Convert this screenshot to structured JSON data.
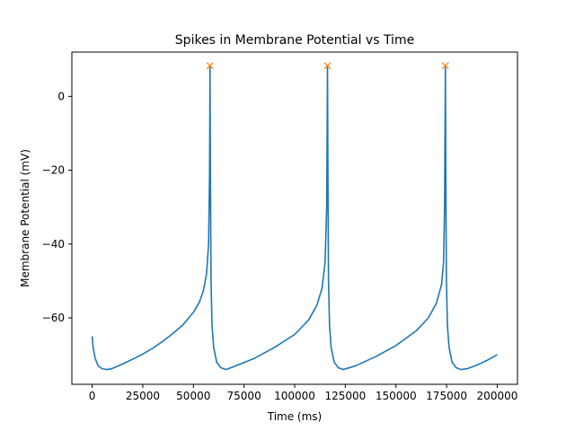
{
  "chart_data": {
    "type": "line",
    "title": "Spikes in Membrane Potential vs Time",
    "xlabel": "Time (ms)",
    "ylabel": "Membrane Potential (mV)",
    "xlim": [
      -10000,
      210000
    ],
    "ylim": [
      -78,
      12
    ],
    "xticks": [
      0,
      25000,
      50000,
      75000,
      100000,
      125000,
      150000,
      175000,
      200000
    ],
    "yticks": [
      0,
      -20,
      -40,
      -60
    ],
    "grid": false,
    "series": [
      {
        "type": "line",
        "color": "#1f77b4",
        "points": [
          [
            0,
            -65
          ],
          [
            500,
            -68
          ],
          [
            1500,
            -71
          ],
          [
            3000,
            -73
          ],
          [
            5000,
            -73.8
          ],
          [
            7500,
            -74
          ],
          [
            10000,
            -73.7
          ],
          [
            15000,
            -72.5
          ],
          [
            20000,
            -71.2
          ],
          [
            25000,
            -69.8
          ],
          [
            30000,
            -68.2
          ],
          [
            35000,
            -66.3
          ],
          [
            40000,
            -64.2
          ],
          [
            45000,
            -61.8
          ],
          [
            50000,
            -58.5
          ],
          [
            53000,
            -55.7
          ],
          [
            55000,
            -52.5
          ],
          [
            56500,
            -48
          ],
          [
            57500,
            -40
          ],
          [
            58000,
            -20
          ],
          [
            58200,
            8
          ],
          [
            58400,
            -20
          ],
          [
            58700,
            -50
          ],
          [
            59200,
            -62
          ],
          [
            60000,
            -68
          ],
          [
            61500,
            -72
          ],
          [
            63500,
            -73.5
          ],
          [
            66000,
            -74
          ],
          [
            70000,
            -73.2
          ],
          [
            80000,
            -71
          ],
          [
            90000,
            -68
          ],
          [
            100000,
            -64.5
          ],
          [
            107000,
            -60.5
          ],
          [
            111000,
            -56.5
          ],
          [
            113500,
            -52
          ],
          [
            115000,
            -45
          ],
          [
            115800,
            -30
          ],
          [
            116200,
            8
          ],
          [
            116400,
            -20
          ],
          [
            116700,
            -50
          ],
          [
            117200,
            -62
          ],
          [
            118000,
            -68
          ],
          [
            119500,
            -72
          ],
          [
            121500,
            -73.5
          ],
          [
            124000,
            -74
          ],
          [
            130000,
            -73
          ],
          [
            140000,
            -70.5
          ],
          [
            150000,
            -67.5
          ],
          [
            160000,
            -63.5
          ],
          [
            166000,
            -60
          ],
          [
            170000,
            -56
          ],
          [
            172500,
            -51
          ],
          [
            173500,
            -45
          ],
          [
            174000,
            -30
          ],
          [
            174400,
            8
          ],
          [
            174600,
            -20
          ],
          [
            174900,
            -50
          ],
          [
            175400,
            -62
          ],
          [
            176200,
            -68
          ],
          [
            177700,
            -72
          ],
          [
            179700,
            -73.5
          ],
          [
            182000,
            -74
          ],
          [
            185000,
            -73.8
          ],
          [
            190000,
            -72.8
          ],
          [
            195000,
            -71.5
          ],
          [
            200000,
            -70
          ]
        ]
      },
      {
        "type": "scatter",
        "marker": "x",
        "color": "#ff7f0e",
        "points": [
          [
            58200,
            8.3
          ],
          [
            116200,
            8.3
          ],
          [
            174400,
            8.3
          ]
        ]
      }
    ]
  }
}
